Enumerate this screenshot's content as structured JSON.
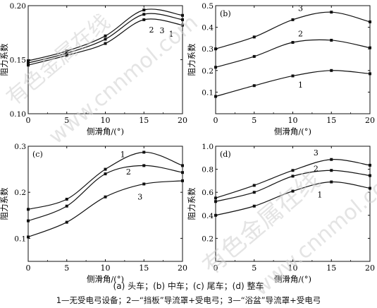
{
  "captions": {
    "subplots": "(a)  头车；(b)  中车；(c)  尾车；(d)  整车",
    "legend": "1—无受电弓设备；2—“挡板”导流罩+受电弓；3—“浴盆”导流罩+受电弓"
  },
  "watermark": {
    "text_a": "有色金属在线",
    "text_b": "www.cnnmol.com"
  },
  "chart_data": [
    {
      "type": "line",
      "panel": "(a)",
      "xlabel": "侧滑角/(°)",
      "ylabel": "阻力系数",
      "xlim": [
        0,
        20
      ],
      "ylim": [
        0.1,
        0.2
      ],
      "xticks": [
        0,
        5,
        10,
        15,
        20
      ],
      "yticks": [
        0.1,
        0.15,
        0.2
      ],
      "ytick_labels": [
        "0.10",
        "0.15",
        "0.20"
      ],
      "x": [
        0,
        5,
        10,
        15,
        20
      ],
      "series": [
        {
          "name": "1",
          "values": [
            0.145,
            0.154,
            0.165,
            0.187,
            0.182
          ]
        },
        {
          "name": "2",
          "values": [
            0.149,
            0.158,
            0.172,
            0.196,
            0.191
          ]
        },
        {
          "name": "3",
          "values": [
            0.147,
            0.156,
            0.169,
            0.192,
            0.187
          ]
        }
      ]
    },
    {
      "type": "line",
      "panel": "(b)",
      "xlabel": "侧滑角/(°)",
      "ylabel": "阻力系数",
      "xlim": [
        0,
        20
      ],
      "ylim": [
        0,
        0.5
      ],
      "xticks": [
        0,
        5,
        10,
        15,
        20
      ],
      "yticks": [
        0.1,
        0.2,
        0.3,
        0.4,
        0.5
      ],
      "ytick_labels": [
        "0.1",
        "0.2",
        "0.3",
        "0.4",
        "0.5"
      ],
      "x": [
        0,
        5,
        10,
        15,
        20
      ],
      "series": [
        {
          "name": "1",
          "values": [
            0.08,
            0.13,
            0.175,
            0.2,
            0.185
          ]
        },
        {
          "name": "2",
          "values": [
            0.215,
            0.265,
            0.33,
            0.34,
            0.305
          ]
        },
        {
          "name": "3",
          "values": [
            0.3,
            0.355,
            0.435,
            0.47,
            0.425
          ]
        }
      ]
    },
    {
      "type": "line",
      "panel": "(c)",
      "xlabel": "侧滑角/(°)",
      "ylabel": "阻力系数",
      "xlim": [
        0,
        20
      ],
      "ylim": [
        0.05,
        0.3
      ],
      "xticks": [
        0,
        5,
        10,
        15,
        20
      ],
      "yticks": [
        0.1,
        0.2,
        0.3
      ],
      "ytick_labels": [
        "0.1",
        "0.2",
        "0.3"
      ],
      "x": [
        0,
        5,
        10,
        15,
        20
      ],
      "series": [
        {
          "name": "1",
          "values": [
            0.163,
            0.185,
            0.25,
            0.287,
            0.258
          ]
        },
        {
          "name": "2",
          "values": [
            0.138,
            0.17,
            0.24,
            0.258,
            0.243
          ]
        },
        {
          "name": "3",
          "values": [
            0.103,
            0.135,
            0.19,
            0.218,
            0.225
          ]
        }
      ]
    },
    {
      "type": "line",
      "panel": "(d)",
      "xlabel": "侧滑角/(°)",
      "ylabel": "阻力系数",
      "xlim": [
        0,
        20
      ],
      "ylim": [
        0,
        1.0
      ],
      "xticks": [
        0,
        5,
        10,
        15,
        20
      ],
      "yticks": [
        0.2,
        0.4,
        0.6,
        0.8,
        1.0
      ],
      "ytick_labels": [
        "0.2",
        "0.4",
        "0.6",
        "0.8",
        "1.0"
      ],
      "x": [
        0,
        5,
        10,
        15,
        20
      ],
      "series": [
        {
          "name": "1",
          "values": [
            0.4,
            0.48,
            0.61,
            0.69,
            0.635
          ]
        },
        {
          "name": "2",
          "values": [
            0.52,
            0.6,
            0.74,
            0.79,
            0.745
          ]
        },
        {
          "name": "3",
          "values": [
            0.55,
            0.66,
            0.79,
            0.885,
            0.835
          ]
        }
      ]
    }
  ]
}
